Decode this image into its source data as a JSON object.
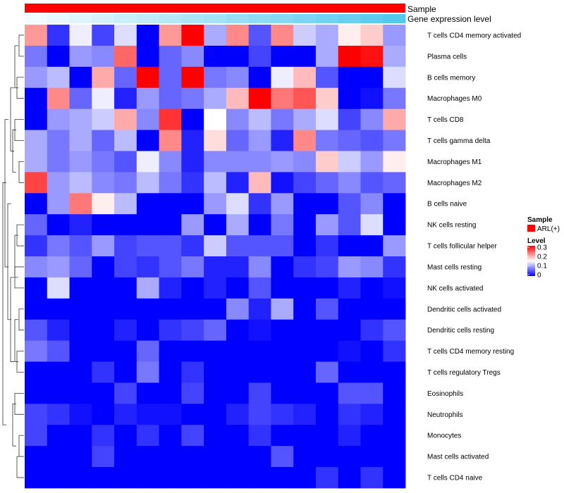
{
  "chart_data": {
    "type": "heatmap",
    "annotations": {
      "sample_label": "Sample",
      "gene_label": "Gene expression level",
      "sample_color": "#ff0000",
      "gene_low_color": "#f2fbff",
      "gene_high_color": "#55c8ee"
    },
    "rows": [
      "T cells CD4 memory activated",
      "Plasma cells",
      "B cells memory",
      "Macrophages M0",
      "T cells CD8",
      "T cells gamma delta",
      "Macrophages M1",
      "Macrophages M2",
      "B cells naive",
      "NK cells resting",
      "T cells follicular helper",
      "Mast cells resting",
      "NK cells activated",
      "Dendritic cells activated",
      "Dendritic cells resting",
      "T cells CD4 memory resting",
      "T cells regulatory  Tregs",
      "Eosinophils",
      "Neutrophils",
      "Monocytes",
      "Mast cells activated",
      "T cells CD4 naive"
    ],
    "values": [
      [
        0.21,
        0.03,
        0.14,
        0.04,
        0.13,
        0.0,
        0.21,
        0.3,
        0.1,
        0.22,
        0.05,
        0.22,
        0.12,
        0.1,
        0.16,
        0.18,
        0.09
      ],
      [
        0.07,
        0.0,
        0.09,
        0.08,
        0.24,
        0.0,
        0.06,
        0.08,
        0.0,
        0.0,
        0.04,
        0.0,
        0.0,
        0.1,
        0.3,
        0.29,
        0.1
      ],
      [
        0.09,
        0.11,
        0.0,
        0.2,
        0.06,
        0.3,
        0.06,
        0.3,
        0.07,
        0.08,
        0.0,
        0.14,
        0.19,
        0.05,
        0.0,
        0.0,
        0.13
      ],
      [
        0.0,
        0.22,
        0.06,
        0.14,
        0.02,
        0.09,
        0.06,
        0.07,
        0.1,
        0.19,
        0.3,
        0.23,
        0.25,
        0.18,
        0.0,
        0.01,
        0.07
      ],
      [
        0.0,
        0.09,
        0.1,
        0.12,
        0.2,
        0.08,
        0.27,
        0.0,
        0.15,
        0.08,
        0.11,
        0.07,
        0.1,
        0.13,
        0.04,
        0.08,
        0.2
      ],
      [
        0.1,
        0.07,
        0.1,
        0.06,
        0.11,
        0.0,
        0.22,
        0.02,
        0.17,
        0.06,
        0.09,
        0.02,
        0.22,
        0.07,
        0.06,
        0.05,
        0.07
      ],
      [
        0.1,
        0.07,
        0.09,
        0.07,
        0.05,
        0.14,
        0.08,
        0.02,
        0.08,
        0.08,
        0.08,
        0.09,
        0.08,
        0.18,
        0.12,
        0.09,
        0.16
      ],
      [
        0.26,
        0.09,
        0.11,
        0.08,
        0.07,
        0.11,
        0.07,
        0.03,
        0.11,
        0.02,
        0.19,
        0.01,
        0.04,
        0.06,
        0.08,
        0.05,
        0.06
      ],
      [
        0.0,
        0.09,
        0.23,
        0.16,
        0.11,
        0.0,
        0.0,
        0.0,
        0.09,
        0.13,
        0.03,
        0.09,
        0.0,
        0.0,
        0.05,
        0.08,
        0.0
      ],
      [
        0.06,
        0.0,
        0.02,
        0.0,
        0.0,
        0.0,
        0.0,
        0.09,
        0.0,
        0.1,
        0.0,
        0.07,
        0.0,
        0.09,
        0.05,
        0.13,
        0.0
      ],
      [
        0.03,
        0.07,
        0.05,
        0.09,
        0.04,
        0.05,
        0.05,
        0.03,
        0.12,
        0.05,
        0.05,
        0.05,
        0.0,
        0.03,
        0.0,
        0.0,
        0.09
      ],
      [
        0.08,
        0.09,
        0.06,
        0.0,
        0.04,
        0.03,
        0.05,
        0.07,
        0.02,
        0.02,
        0.08,
        0.0,
        0.03,
        0.04,
        0.09,
        0.08,
        0.03
      ],
      [
        0.0,
        0.13,
        0.0,
        0.0,
        0.0,
        0.1,
        0.02,
        0.0,
        0.02,
        0.0,
        0.05,
        0.0,
        0.0,
        0.0,
        0.02,
        0.0,
        0.01
      ],
      [
        0.0,
        0.0,
        0.0,
        0.0,
        0.0,
        0.0,
        0.0,
        0.0,
        0.0,
        0.08,
        0.02,
        0.1,
        0.0,
        0.05,
        0.0,
        0.0,
        0.0
      ],
      [
        0.05,
        0.02,
        0.0,
        0.0,
        0.02,
        0.0,
        0.03,
        0.04,
        0.06,
        0.0,
        0.01,
        0.0,
        0.0,
        0.0,
        0.0,
        0.03,
        0.05
      ],
      [
        0.07,
        0.05,
        0.0,
        0.0,
        0.0,
        0.06,
        0.0,
        0.0,
        0.0,
        0.0,
        0.0,
        0.0,
        0.0,
        0.0,
        0.01,
        0.0,
        0.03
      ],
      [
        0.0,
        0.0,
        0.0,
        0.03,
        0.0,
        0.07,
        0.0,
        0.03,
        0.0,
        0.0,
        0.0,
        0.0,
        0.0,
        0.06,
        0.0,
        0.0,
        0.0
      ],
      [
        0.0,
        0.0,
        0.0,
        0.0,
        0.04,
        0.0,
        0.0,
        0.04,
        0.0,
        0.0,
        0.04,
        0.0,
        0.0,
        0.0,
        0.05,
        0.05,
        0.0
      ],
      [
        0.04,
        0.03,
        0.01,
        0.0,
        0.02,
        0.01,
        0.01,
        0.0,
        0.0,
        0.02,
        0.04,
        0.03,
        0.02,
        0.0,
        0.03,
        0.02,
        0.0
      ],
      [
        0.04,
        0.0,
        0.0,
        0.03,
        0.0,
        0.03,
        0.0,
        0.04,
        0.0,
        0.0,
        0.03,
        0.0,
        0.0,
        0.0,
        0.02,
        0.0,
        0.0
      ],
      [
        0.0,
        0.0,
        0.0,
        0.04,
        0.0,
        0.0,
        0.0,
        0.0,
        0.0,
        0.0,
        0.0,
        0.05,
        0.0,
        0.0,
        0.0,
        0.0,
        0.0
      ],
      [
        0.0,
        0.0,
        0.0,
        0.0,
        0.0,
        0.0,
        0.0,
        0.0,
        0.0,
        0.0,
        0.0,
        0.0,
        0.0,
        0.03,
        0.0,
        0.03,
        0.0
      ]
    ],
    "columns_count": 17,
    "color_scale": {
      "low": "#0000ff",
      "mid": "#ffffff",
      "high": "#ff0000",
      "domain": [
        0,
        0.15,
        0.3
      ]
    },
    "legend": {
      "sample_title": "Sample",
      "sample_entry": "ARL(+)",
      "level_title": "Level",
      "level_ticks": [
        "0.3",
        "0.2",
        "0.1",
        "0"
      ]
    }
  }
}
